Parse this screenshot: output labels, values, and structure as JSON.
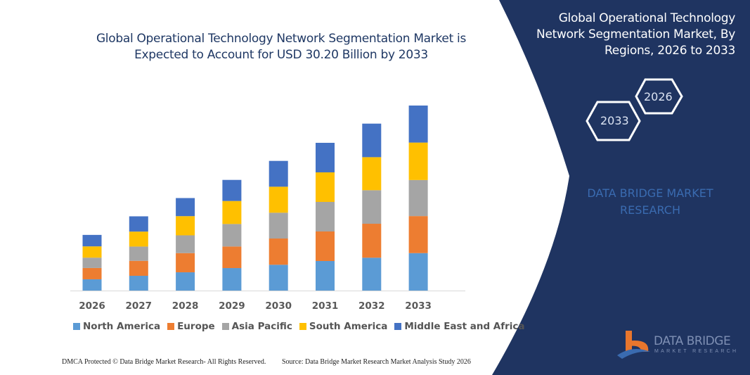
{
  "title": "Global Operational Technology Network Segmentation Market is Expected to Account for USD 30.20 Billion by 2033",
  "side_panel": {
    "title": "Global Operational Technology Network Segmentation Market, By Regions, 2026 to 2033",
    "hex_start": "2026",
    "hex_end": "2033",
    "watermark_text": "DATA BRIDGE MARKET RESEARCH",
    "logo_name": "DATA BRIDGE",
    "logo_sub": "MARKET RESEARCH",
    "bg_color": "#1f3461"
  },
  "footer": {
    "left": "DMCA Protected © Data Bridge Market Research- All Rights Reserved.",
    "right": "Source: Data Bridge Market Research Market Analysis Study 2026"
  },
  "chart_data": {
    "type": "bar",
    "stacked": true,
    "title": "Global Operational Technology Network Segmentation Market is Expected to Account for USD 30.20 Billion by 2033",
    "xlabel": "",
    "ylabel": "",
    "y_axis_visible": false,
    "grid": false,
    "legend_position": "bottom",
    "categories": [
      "2026",
      "2027",
      "2028",
      "2029",
      "2030",
      "2031",
      "2032",
      "2033"
    ],
    "series": [
      {
        "name": "North America",
        "color": "#5b9bd5",
        "values": [
          1.84,
          2.41,
          2.98,
          3.67,
          4.21,
          4.82,
          5.36,
          6.11
        ]
      },
      {
        "name": "Europe",
        "color": "#ed7d31",
        "values": [
          1.84,
          2.44,
          3.13,
          3.52,
          4.28,
          4.82,
          5.54,
          6.04
        ]
      },
      {
        "name": "Asia Pacific",
        "color": "#a5a5a5",
        "values": [
          1.69,
          2.33,
          2.9,
          3.67,
          4.21,
          4.82,
          5.47,
          5.88
        ]
      },
      {
        "name": "South America",
        "color": "#ffc000",
        "values": [
          1.84,
          2.44,
          3.13,
          3.75,
          4.24,
          4.82,
          5.39,
          6.11
        ]
      },
      {
        "name": "Middle East and Africa",
        "color": "#4472c4",
        "values": [
          1.87,
          2.49,
          2.95,
          3.44,
          4.21,
          4.82,
          5.47,
          6.04
        ]
      }
    ]
  }
}
